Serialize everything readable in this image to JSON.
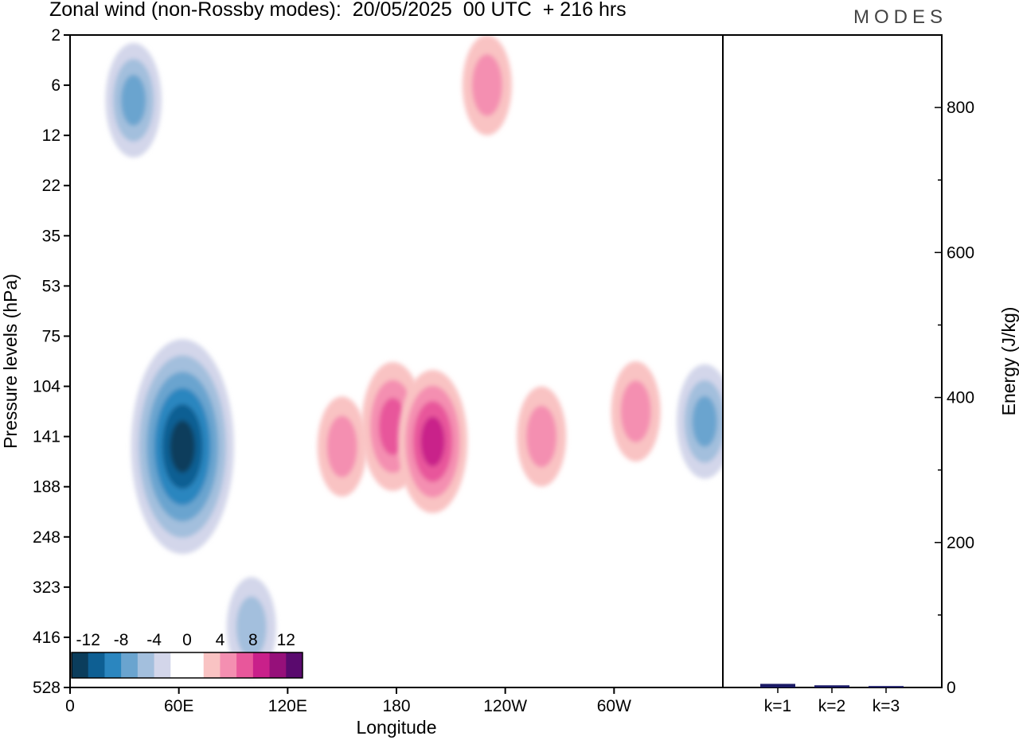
{
  "title": "Zonal wind (non-Rossby modes):  20/05/2025  00 UTC  + 216 hrs",
  "logo": "MODES",
  "chart_data": [
    {
      "type": "heatmap",
      "title": "Zonal wind (non-Rossby modes):  20/05/2025  00 UTC  + 216 hrs",
      "xlabel": "Longitude",
      "ylabel": "Pressure levels (hPa)",
      "x_ticks": [
        "0",
        "60E",
        "120E",
        "180",
        "120W",
        "60W"
      ],
      "x_tick_values": [
        0,
        60,
        120,
        180,
        240,
        300
      ],
      "xlim": [
        0,
        360
      ],
      "y_ticks": [
        "2",
        "6",
        "12",
        "22",
        "35",
        "53",
        "75",
        "104",
        "141",
        "188",
        "248",
        "323",
        "416",
        "528"
      ],
      "colorbar": {
        "labels": [
          "-12",
          "-8",
          "-4",
          "0",
          "4",
          "8",
          "12"
        ],
        "label_values": [
          -12,
          -8,
          -4,
          0,
          4,
          8,
          12
        ],
        "colors": [
          "#0b3d5c",
          "#0e5f93",
          "#2b86bf",
          "#6aa4cf",
          "#a3bfdd",
          "#d3d6ea",
          "#ffffff",
          "#ffffff",
          "#f9c3c3",
          "#f48fb1",
          "#e8579b",
          "#c9208a",
          "#96107a",
          "#5a0a6e"
        ]
      },
      "features": [
        {
          "lon": 62,
          "level_index": 8.2,
          "value": -13
        },
        {
          "lon": 35,
          "level_index": 1.3,
          "value": -6
        },
        {
          "lon": 178,
          "level_index": 7.8,
          "value": 7
        },
        {
          "lon": 200,
          "level_index": 8.1,
          "value": 8
        },
        {
          "lon": 150,
          "level_index": 8.2,
          "value": 5
        },
        {
          "lon": 260,
          "level_index": 8.0,
          "value": 5
        },
        {
          "lon": 312,
          "level_index": 7.5,
          "value": 5
        },
        {
          "lon": 230,
          "level_index": 1.0,
          "value": 5
        },
        {
          "lon": 350,
          "level_index": 7.7,
          "value": -6
        },
        {
          "lon": 100,
          "level_index": 11.8,
          "value": -5
        }
      ]
    },
    {
      "type": "bar",
      "categories": [
        "k=1",
        "k=2",
        "k=3"
      ],
      "values": [
        5,
        3,
        2
      ],
      "ylabel": "Energy (J/kg)",
      "ylim": [
        0,
        900
      ],
      "y_ticks": [
        0,
        200,
        400,
        600,
        800
      ],
      "bar_color": "#1a1a66"
    }
  ]
}
